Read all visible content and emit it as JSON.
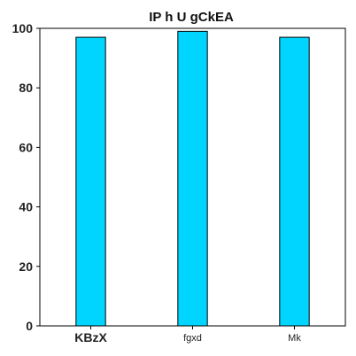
{
  "chart_data": {
    "type": "bar",
    "title": "IP h U gCkEA",
    "categories": [
      "KBzX",
      "fgxd",
      "Mk"
    ],
    "category_label_weights": [
      "bold",
      "normal",
      "normal"
    ],
    "values": [
      97,
      99,
      97
    ],
    "ylim": [
      0,
      100
    ],
    "yticks": [
      0,
      20,
      40,
      60,
      80,
      100
    ],
    "xlabel": "",
    "ylabel": "",
    "grid": false,
    "bar_color": "#00d5ff",
    "bar_edge_color": "#000000"
  }
}
